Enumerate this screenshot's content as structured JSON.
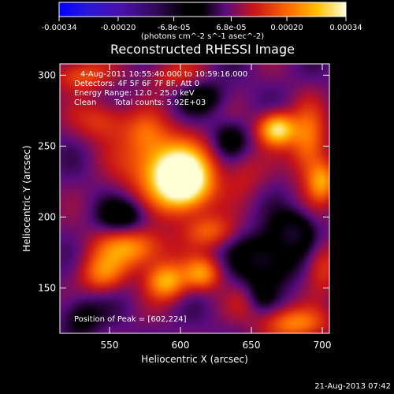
{
  "chart_data": {
    "type": "heatmap",
    "title": "Reconstructed RHESSI Image",
    "xlabel": "Heliocentric X (arcsec)",
    "ylabel": "Heliocentric Y (arcsec)",
    "xlim": [
      515,
      705
    ],
    "ylim": [
      118,
      308
    ],
    "x_ticks": [
      550,
      600,
      650,
      700
    ],
    "y_ticks": [
      150,
      200,
      250,
      300
    ],
    "colorbar": {
      "range": [
        -0.00034,
        0.00034
      ],
      "tick_values": [
        -0.00034,
        -0.0002,
        -6.8e-05,
        6.8e-05,
        0.0002,
        0.00034
      ],
      "tick_labels": [
        "-0.00034",
        "-0.00020",
        "-6.8e-05",
        "6.8e-05",
        "0.00020",
        "0.00034"
      ],
      "units_label": "(photons cm^-2 s^-1 asec^-2)"
    },
    "annotations": {
      "time_range": "4-Aug-2011 10:55:40.000 to 10:59:16.000",
      "detectors": "Detectors: 4F 5F 6F 7F 8F, Att 0",
      "energy_range": "Energy Range: 12.0 - 25.0 keV",
      "method": "Clean",
      "total_counts": "Total counts: 5.92E+03",
      "peak_position": "Position of Peak = [602,224]"
    },
    "timestamp": "21-Aug-2013 07:42",
    "sources": [
      {
        "x": 602,
        "y": 224,
        "amplitude": 0.00034,
        "sigma_x": 14,
        "sigma_y": 14
      },
      {
        "x": 587,
        "y": 238,
        "amplitude": 0.00018,
        "sigma_x": 20,
        "sigma_y": 16
      },
      {
        "x": 668,
        "y": 262,
        "amplitude": 0.00026,
        "sigma_x": 9,
        "sigma_y": 8
      },
      {
        "x": 690,
        "y": 252,
        "amplitude": 0.00016,
        "sigma_x": 9,
        "sigma_y": 18
      },
      {
        "x": 700,
        "y": 225,
        "amplitude": 0.00017,
        "sigma_x": 7,
        "sigma_y": 10
      },
      {
        "x": 545,
        "y": 268,
        "amplitude": 0.0001,
        "sigma_x": 14,
        "sigma_y": 10
      },
      {
        "x": 530,
        "y": 300,
        "amplitude": 0.00012,
        "sigma_x": 14,
        "sigma_y": 8
      },
      {
        "x": 575,
        "y": 260,
        "amplitude": 8e-05,
        "sigma_x": 10,
        "sigma_y": 10
      },
      {
        "x": 595,
        "y": 300,
        "amplitude": 8e-05,
        "sigma_x": 14,
        "sigma_y": 8
      },
      {
        "x": 565,
        "y": 178,
        "amplitude": 0.00018,
        "sigma_x": 18,
        "sigma_y": 10
      },
      {
        "x": 590,
        "y": 155,
        "amplitude": 0.0002,
        "sigma_x": 10,
        "sigma_y": 9
      },
      {
        "x": 545,
        "y": 160,
        "amplitude": 0.00014,
        "sigma_x": 11,
        "sigma_y": 9
      },
      {
        "x": 615,
        "y": 160,
        "amplitude": 0.00017,
        "sigma_x": 9,
        "sigma_y": 8
      },
      {
        "x": 620,
        "y": 190,
        "amplitude": 0.00012,
        "sigma_x": 12,
        "sigma_y": 8
      },
      {
        "x": 680,
        "y": 125,
        "amplitude": 0.00016,
        "sigma_x": 16,
        "sigma_y": 8
      },
      {
        "x": 700,
        "y": 165,
        "amplitude": 0.0001,
        "sigma_x": 8,
        "sigma_y": 12
      },
      {
        "x": 650,
        "y": 140,
        "amplitude": 8e-05,
        "sigma_x": 10,
        "sigma_y": 8
      },
      {
        "x": 645,
        "y": 230,
        "amplitude": 6e-05,
        "sigma_x": 10,
        "sigma_y": 12
      },
      {
        "x": 660,
        "y": 170,
        "amplitude": -0.00014,
        "sigma_x": 14,
        "sigma_y": 12
      },
      {
        "x": 680,
        "y": 190,
        "amplitude": -0.00012,
        "sigma_x": 10,
        "sigma_y": 10
      },
      {
        "x": 655,
        "y": 142,
        "amplitude": -0.0001,
        "sigma_x": 8,
        "sigma_y": 8
      },
      {
        "x": 635,
        "y": 255,
        "amplitude": -8e-05,
        "sigma_x": 9,
        "sigma_y": 9
      },
      {
        "x": 560,
        "y": 200,
        "amplitude": -0.0001,
        "sigma_x": 12,
        "sigma_y": 9
      },
      {
        "x": 530,
        "y": 130,
        "amplitude": -8e-05,
        "sigma_x": 10,
        "sigma_y": 10
      },
      {
        "x": 615,
        "y": 285,
        "amplitude": -8e-05,
        "sigma_x": 12,
        "sigma_y": 8
      }
    ],
    "background": 6e-05
  }
}
